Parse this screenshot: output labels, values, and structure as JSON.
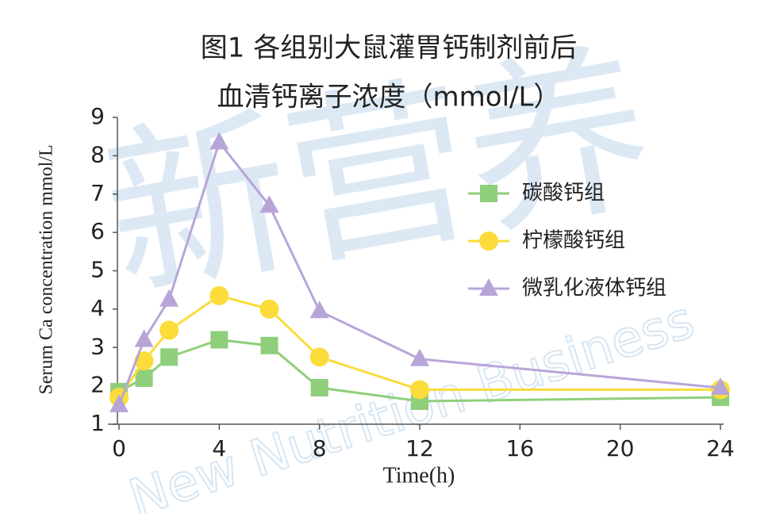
{
  "chart_data": {
    "type": "line",
    "title": "图1 各组别大鼠灌胃钙制剂前后",
    "subtitle": "血清钙离子浓度（mmol/L）",
    "x_label": "Time(h)",
    "y_label": "Serum Ca concentration mmol/L",
    "watermark": "新营养",
    "watermark_en": "New Nutrition Business",
    "x": [
      0,
      1,
      2,
      4,
      6,
      8,
      12,
      24
    ],
    "series": [
      {
        "name": "碳酸钙组",
        "color": "#8fcf7b",
        "marker": "square",
        "values": [
          1.85,
          2.2,
          2.75,
          3.2,
          3.05,
          1.95,
          1.6,
          1.7
        ]
      },
      {
        "name": "柠檬酸钙组",
        "color": "#fbdc3a",
        "marker": "circle",
        "values": [
          1.7,
          2.65,
          3.45,
          4.35,
          4.0,
          2.75,
          1.9,
          1.9
        ]
      },
      {
        "name": "微乳化液体钙组",
        "color": "#b8a5d8",
        "marker": "triangle",
        "values": [
          1.5,
          3.2,
          4.25,
          8.35,
          6.7,
          3.95,
          2.7,
          1.95
        ]
      }
    ],
    "xlim": [
      0,
      24
    ],
    "xticks": [
      0,
      4,
      8,
      12,
      16,
      20,
      24
    ],
    "ylim": [
      1,
      9
    ],
    "yticks": [
      1,
      2,
      3,
      4,
      5,
      6,
      7,
      8,
      9
    ],
    "legend": "right"
  }
}
